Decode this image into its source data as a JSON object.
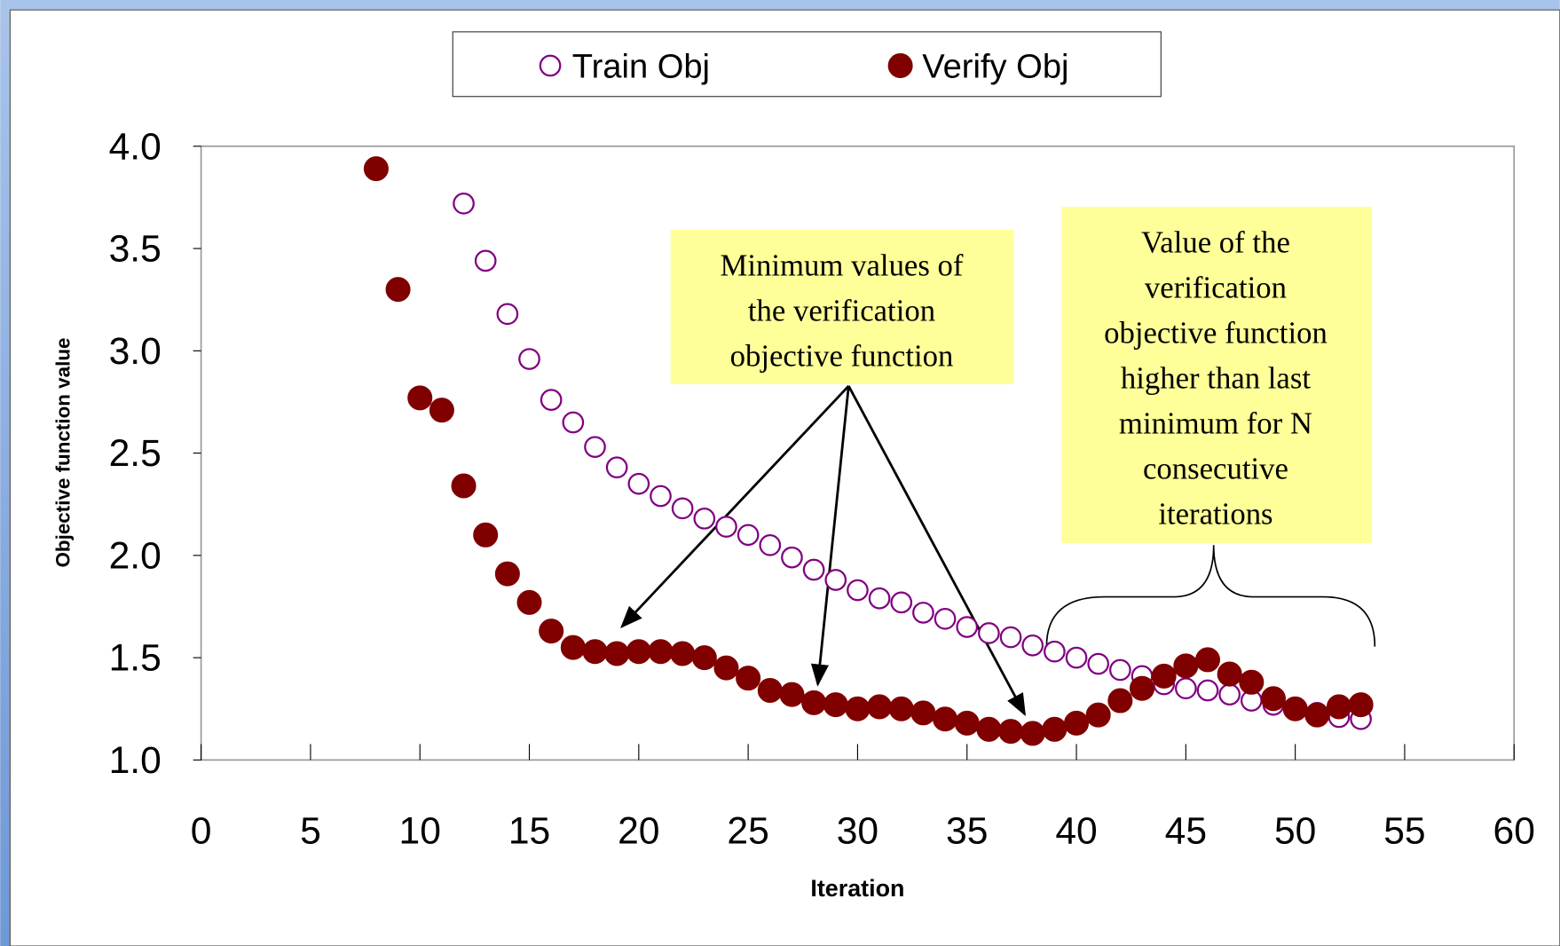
{
  "chart_data": {
    "type": "scatter",
    "xlabel": "Iteration",
    "ylabel": "Objective function value",
    "xlim": [
      0,
      60
    ],
    "xticks": [
      0,
      5,
      10,
      15,
      20,
      25,
      30,
      35,
      40,
      45,
      50,
      55,
      60
    ],
    "ylim": [
      1,
      4
    ],
    "yticks": [
      {
        "value": 1,
        "label": "1.0"
      },
      1.5,
      {
        "value": 2,
        "label": "2.0"
      },
      2.5,
      {
        "value": 3,
        "label": "3.0"
      },
      3.5,
      {
        "value": 4,
        "label": "4.0"
      }
    ],
    "series": [
      {
        "name": "Train Obj",
        "color": "#800080",
        "marker": "hollow",
        "x": [
          12,
          13,
          14,
          15,
          16,
          17,
          18,
          19,
          20,
          21,
          22,
          23,
          24,
          25,
          26,
          27,
          28,
          29,
          30,
          31,
          32,
          33,
          34,
          35,
          36,
          37,
          38,
          39,
          40,
          41,
          42,
          43,
          44,
          45,
          46,
          47,
          48,
          49,
          50,
          51,
          52,
          53
        ],
        "values": [
          3.72,
          3.44,
          3.18,
          2.96,
          2.76,
          2.65,
          2.53,
          2.43,
          2.35,
          2.29,
          2.23,
          2.18,
          2.14,
          2.1,
          2.05,
          1.99,
          1.93,
          1.88,
          1.83,
          1.79,
          1.77,
          1.72,
          1.69,
          1.65,
          1.62,
          1.6,
          1.56,
          1.53,
          1.5,
          1.47,
          1.44,
          1.41,
          1.37,
          1.35,
          1.34,
          1.32,
          1.29,
          1.27,
          1.25,
          1.23,
          1.21,
          1.2
        ]
      },
      {
        "name": "Verify Obj",
        "color": "#800000",
        "marker": "filled",
        "x": [
          8,
          9,
          10,
          11,
          12,
          13,
          14,
          15,
          16,
          17,
          18,
          19,
          20,
          21,
          22,
          23,
          24,
          25,
          26,
          27,
          28,
          29,
          30,
          31,
          32,
          33,
          34,
          35,
          36,
          37,
          38,
          39,
          40,
          41,
          42,
          43,
          44,
          45,
          46,
          47,
          48,
          49,
          50,
          51,
          52,
          53
        ],
        "values": [
          3.89,
          3.3,
          2.77,
          2.71,
          2.34,
          2.1,
          1.91,
          1.77,
          1.63,
          1.55,
          1.53,
          1.52,
          1.53,
          1.53,
          1.52,
          1.5,
          1.45,
          1.4,
          1.34,
          1.32,
          1.28,
          1.27,
          1.25,
          1.26,
          1.25,
          1.23,
          1.2,
          1.18,
          1.15,
          1.14,
          1.13,
          1.15,
          1.18,
          1.22,
          1.29,
          1.35,
          1.41,
          1.46,
          1.49,
          1.42,
          1.38,
          1.3,
          1.25,
          1.22,
          1.26,
          1.27
        ]
      }
    ],
    "annotations": [
      {
        "lines": [
          "Minimum values of",
          "the verification",
          "objective function"
        ]
      },
      {
        "lines": [
          "Value of the",
          "verification",
          "objective function",
          "higher than last",
          "minimum for N",
          "consecutive",
          "iterations"
        ]
      }
    ]
  }
}
